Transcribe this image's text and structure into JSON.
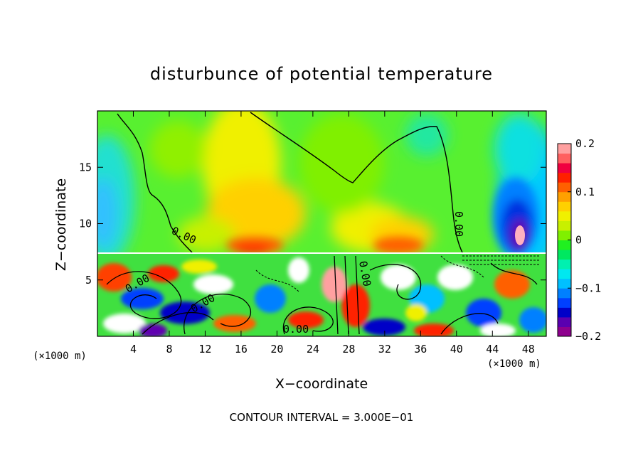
{
  "chart_data": {
    "type": "heatmap",
    "title": "disturbunce of potential temperature",
    "xlabel": "X−coordinate",
    "ylabel": "Z−coordinate",
    "x_unit": "(×1000 m)",
    "y_unit": "(×1000 m)",
    "xlim": [
      0,
      50
    ],
    "ylim": [
      0,
      20
    ],
    "x_ticks": [
      4,
      8,
      12,
      16,
      20,
      24,
      28,
      32,
      36,
      40,
      44,
      48
    ],
    "y_ticks": [
      5,
      10,
      15
    ],
    "colorbar": {
      "range": [
        -0.2,
        0.2
      ],
      "tick_values": [
        0.2,
        0.1,
        0,
        -0.1,
        -0.2
      ],
      "tick_labels": [
        "0.2",
        "0.1",
        "0",
        "−0.1",
        "−0.2"
      ],
      "colors": [
        "#8e008e",
        "#5a00b0",
        "#0000c8",
        "#0040ff",
        "#0080ff",
        "#00c0ff",
        "#00e8f0",
        "#00f0b0",
        "#00e860",
        "#20f020",
        "#80f000",
        "#c8f000",
        "#f0f000",
        "#ffd000",
        "#ffa000",
        "#ff6000",
        "#ff2000",
        "#f00040",
        "#ff6060",
        "#ffa0a0"
      ]
    },
    "contour_labels": [
      "0.00",
      "0.00",
      "0.00",
      "0.00",
      "0.00",
      "0.00"
    ],
    "contour_interval_note": "CONTOUR INTERVAL = 3.000E−01",
    "field_features": {
      "upper_layer_background": 0.02,
      "warm_bands_near_z": 8,
      "cold_anomaly_near_x": 47,
      "turbulent_layer_top_z": 7.3
    }
  }
}
